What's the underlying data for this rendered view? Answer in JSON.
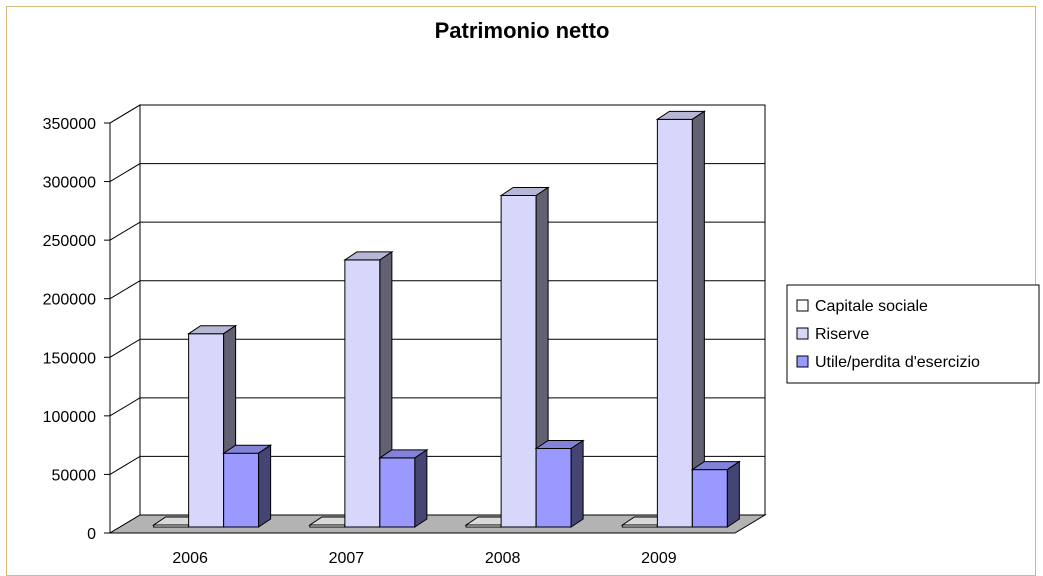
{
  "chart_data": {
    "type": "bar",
    "title": "Patrimonio netto",
    "xlabel": "",
    "ylabel": "",
    "categories": [
      "2006",
      "2007",
      "2008",
      "2009"
    ],
    "series": [
      {
        "name": "Capitale sociale",
        "values": [
          500,
          500,
          500,
          500
        ],
        "color": "#ffffff"
      },
      {
        "name": "Riserve",
        "values": [
          165000,
          228000,
          283000,
          348000
        ],
        "color": "#d7d7fb"
      },
      {
        "name": "Utile/perdita d'esercizio",
        "values": [
          63000,
          59000,
          67000,
          49000
        ],
        "color": "#9999ff"
      }
    ],
    "ylim": [
      0,
      350000
    ],
    "yticks": [
      "0",
      "50000",
      "100000",
      "150000",
      "200000",
      "250000",
      "300000",
      "350000"
    ],
    "grid": true,
    "legend": "right",
    "style": "3d-clustered-column"
  }
}
